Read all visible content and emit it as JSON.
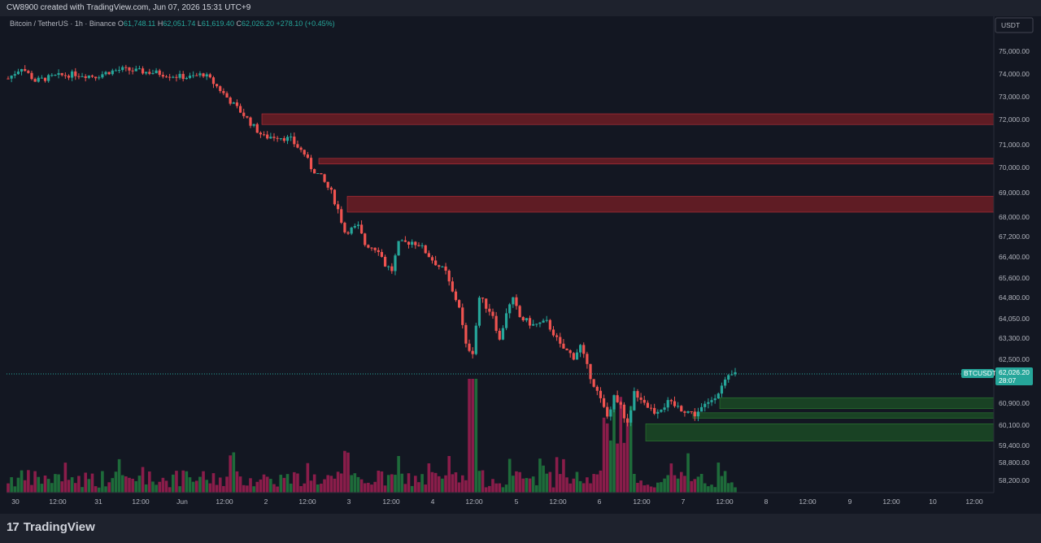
{
  "header": {
    "attribution": "CW8900 created with TradingView.com, Jun 07, 2026 15:31 UTC+9"
  },
  "legend": {
    "symbol": "Bitcoin / TetherUS · 1h · Binance",
    "open_label": "O",
    "open": "61,748.11",
    "high_label": "H",
    "high": "62,051.74",
    "low_label": "L",
    "low": "61,619.40",
    "close_label": "C",
    "close": "62,026.20",
    "change": "+278.10 (+0.45%)"
  },
  "currency_button": "USDT",
  "current_price": {
    "ticker": "BTCUSDT",
    "price": "62,026.20",
    "countdown": "28:07",
    "value": 62026.2
  },
  "brand": {
    "logo_icon": "tradingview-logo-icon",
    "name": "TradingView"
  },
  "colors": {
    "background": "#131722",
    "up": "#26a69a",
    "down": "#ef5350",
    "resistance_zone": "#7a1f26",
    "support_zone": "#1b4d26",
    "vol_up": "#1e6b3a",
    "vol_down": "#8a1d4a"
  },
  "chart_data": {
    "type": "candlestick",
    "timeframe": "1h",
    "y_scale": "nonuniform",
    "y_ticks": [
      75000,
      74000,
      73000,
      72000,
      71000,
      70000,
      69000,
      68000,
      67200,
      66400,
      65600,
      64800,
      64050,
      63300,
      62500,
      60900,
      60100,
      59400,
      58800,
      58200
    ],
    "y_tick_labels": [
      "75,000.00",
      "74,000.00",
      "73,000.00",
      "72,000.00",
      "71,000.00",
      "70,000.00",
      "69,000.00",
      "68,000.00",
      "67,200.00",
      "66,400.00",
      "65,600.00",
      "64,800.00",
      "64,050.00",
      "63,300.00",
      "62,500.00",
      "60,900.00",
      "60,100.00",
      "59,400.00",
      "58,800.00",
      "58,200.00"
    ],
    "x_tick_labels": [
      "30",
      "12:00",
      "31",
      "12:00",
      "Jun",
      "12:00",
      "2",
      "12:00",
      "3",
      "12:00",
      "4",
      "12:00",
      "5",
      "12:00",
      "6",
      "12:00",
      "7",
      "12:00",
      "8",
      "12:00",
      "9",
      "12:00",
      "10",
      "12:00"
    ],
    "resistance_zones": [
      {
        "low": 71800,
        "high": 72250
      },
      {
        "low": 70150,
        "high": 70400
      },
      {
        "low": 68200,
        "high": 68850
      }
    ],
    "support_zones": [
      {
        "low": 60700,
        "high": 61100
      },
      {
        "low": 60350,
        "high": 60550
      },
      {
        "low": 59550,
        "high": 60150
      }
    ],
    "path_points": [
      [
        0,
        73800
      ],
      [
        4,
        74300
      ],
      [
        8,
        73700
      ],
      [
        14,
        73900
      ],
      [
        20,
        74000
      ],
      [
        26,
        73900
      ],
      [
        30,
        74100
      ],
      [
        34,
        74200
      ],
      [
        40,
        74100
      ],
      [
        44,
        74050
      ],
      [
        50,
        73900
      ],
      [
        54,
        73850
      ],
      [
        58,
        74000
      ],
      [
        60,
        73750
      ],
      [
        63,
        73300
      ],
      [
        66,
        72800
      ],
      [
        70,
        72200
      ],
      [
        73,
        71700
      ],
      [
        76,
        71300
      ],
      [
        80,
        71350
      ],
      [
        84,
        71200
      ],
      [
        88,
        70600
      ],
      [
        90,
        70000
      ],
      [
        93,
        69600
      ],
      [
        96,
        69000
      ],
      [
        98,
        68300
      ],
      [
        100,
        67400
      ],
      [
        104,
        67600
      ],
      [
        106,
        66900
      ],
      [
        110,
        66700
      ],
      [
        112,
        66100
      ],
      [
        114,
        65900
      ],
      [
        116,
        66900
      ],
      [
        120,
        67000
      ],
      [
        122,
        66900
      ],
      [
        126,
        66300
      ],
      [
        130,
        65800
      ],
      [
        132,
        65000
      ],
      [
        134,
        64500
      ],
      [
        136,
        63000
      ],
      [
        138,
        62800
      ],
      [
        140,
        64800
      ],
      [
        144,
        64200
      ],
      [
        146,
        63200
      ],
      [
        148,
        64300
      ],
      [
        150,
        64700
      ],
      [
        152,
        64100
      ],
      [
        156,
        63800
      ],
      [
        160,
        63900
      ],
      [
        162,
        63500
      ],
      [
        164,
        63000
      ],
      [
        168,
        62600
      ],
      [
        170,
        63000
      ],
      [
        172,
        62200
      ],
      [
        174,
        61600
      ],
      [
        176,
        61000
      ],
      [
        178,
        60400
      ],
      [
        180,
        61200
      ],
      [
        182,
        60800
      ],
      [
        184,
        60100
      ],
      [
        186,
        61300
      ],
      [
        188,
        61100
      ],
      [
        190,
        60800
      ],
      [
        192,
        60600
      ],
      [
        196,
        60900
      ],
      [
        200,
        60700
      ],
      [
        204,
        60500
      ],
      [
        208,
        60900
      ],
      [
        212,
        61500
      ],
      [
        214,
        61800
      ],
      [
        216,
        62000
      ]
    ]
  }
}
